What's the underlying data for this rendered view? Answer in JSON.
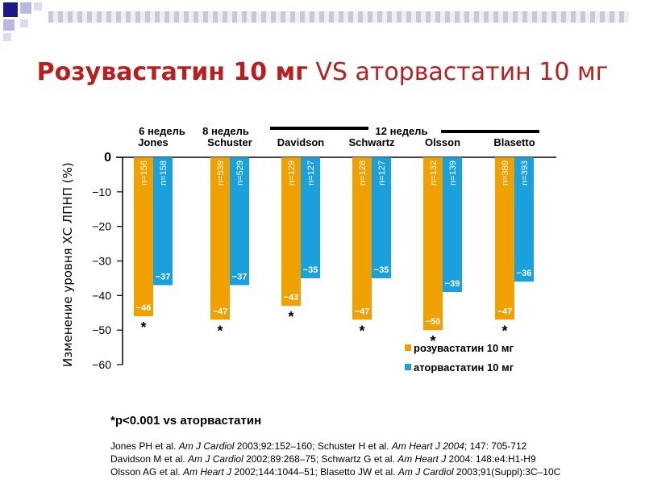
{
  "header": {
    "title_bold": "Розувастатин 10 мг",
    "title_rest": "VS аторвастатин 10 мг"
  },
  "chart_data": {
    "type": "bar",
    "ylabel": "Изменение уровня ХС ЛПНП (%)",
    "ylim": [
      -60,
      0
    ],
    "yticks": [
      {
        "value": 0,
        "label": "0"
      },
      {
        "value": -10,
        "label": "−10"
      },
      {
        "value": -20,
        "label": "−20"
      },
      {
        "value": -30,
        "label": "−30"
      },
      {
        "value": -40,
        "label": "−40"
      },
      {
        "value": -50,
        "label": "−50"
      },
      {
        "value": -60,
        "label": "−60"
      }
    ],
    "categories": [
      "Jones",
      "Schuster",
      "Davidson",
      "Schwartz",
      "Olsson",
      "Blasetto"
    ],
    "durations": [
      {
        "label": "6 недель",
        "group": [
          0
        ]
      },
      {
        "label": "8 недель",
        "group": [
          1
        ]
      },
      {
        "label": "12 недель",
        "group": [
          2,
          3,
          4,
          5
        ]
      }
    ],
    "series": [
      {
        "name": "розувастатин 10 мг",
        "color": "#f0a000",
        "values": [
          -46,
          -47,
          -43,
          -47,
          -50,
          -47
        ],
        "value_labels": [
          "−46",
          "−47",
          "−43",
          "−47",
          "−50",
          "−47"
        ],
        "n_labels": [
          "n=156",
          "n=539",
          "n=129",
          "n=128",
          "n=132",
          "n=389"
        ]
      },
      {
        "name": "аторвастатин 10 мг",
        "color": "#1aa0dc",
        "values": [
          -37,
          -37,
          -35,
          -35,
          -39,
          -36
        ],
        "value_labels": [
          "−37",
          "−37",
          "−35",
          "−35",
          "−39",
          "−36"
        ],
        "n_labels": [
          "n=158",
          "n=529",
          "n=127",
          "n=127",
          "n=139",
          "n=393"
        ]
      }
    ],
    "significance_marker": "*",
    "legend_position": "bottom-right"
  },
  "footnote": "*p<0.001 vs аторвастатин",
  "references": [
    [
      {
        "t": "Jones PH et al. "
      },
      {
        "t": "Am J Cardiol",
        "i": true
      },
      {
        "t": " 2003;92:152–160; Schuster H et al. "
      },
      {
        "t": "Am Heart J 2004",
        "i": true
      },
      {
        "t": "; 147: 705-712"
      }
    ],
    [
      {
        "t": "Davidson M et al. "
      },
      {
        "t": "Am J Cardiol",
        "i": true
      },
      {
        "t": " 2002;89:268–75; Schwartz G et al. "
      },
      {
        "t": "Am Heart J",
        "i": true
      },
      {
        "t": " 2004: 148:e4:H1-H9"
      }
    ],
    [
      {
        "t": "Olsson AG et al. "
      },
      {
        "t": "Am Heart J",
        "i": true
      },
      {
        "t": " 2002;144:1044–51; Blasetto JW et al. "
      },
      {
        "t": "Am J Cardiol",
        "i": true
      },
      {
        "t": " 2003;91(Suppl):3C–10C"
      }
    ]
  ]
}
